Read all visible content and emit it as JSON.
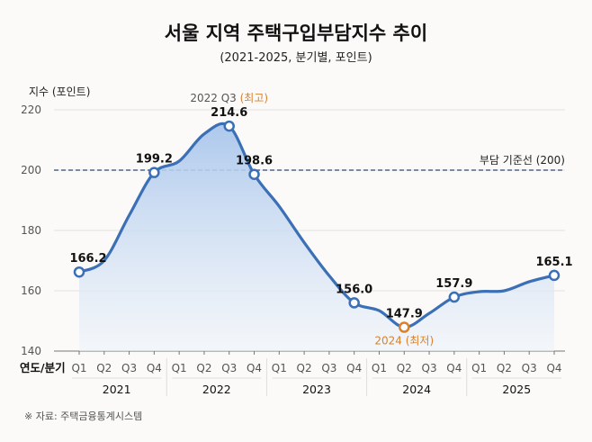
{
  "chart_data": {
    "type": "area",
    "title": "서울 지역 주택구입부담지수 추이",
    "subtitle": "(2021-2025, 분기별, 포인트)",
    "ylabel": "지수 (포인트)",
    "xlabel": "연도/분기",
    "ylim": [
      140,
      220
    ],
    "yticks": [
      140,
      160,
      180,
      200,
      220
    ],
    "grid": true,
    "years": [
      "2021",
      "2022",
      "2023",
      "2024",
      "2025"
    ],
    "quarters": [
      "Q1",
      "Q2",
      "Q3",
      "Q4"
    ],
    "values": [
      166.2,
      170,
      185,
      199.2,
      203,
      212,
      214.6,
      198.6,
      188,
      176,
      165,
      156.0,
      153.4,
      147.9,
      152.5,
      157.9,
      159.7,
      160,
      163,
      165.1
    ],
    "labeled_points": [
      {
        "index": 0,
        "label": "166.2"
      },
      {
        "index": 3,
        "label": "199.2"
      },
      {
        "index": 6,
        "label": "214.6"
      },
      {
        "index": 7,
        "label": "198.6"
      },
      {
        "index": 11,
        "label": "156.0"
      },
      {
        "index": 13,
        "label": "147.9"
      },
      {
        "index": 15,
        "label": "157.9"
      },
      {
        "index": 19,
        "label": "165.1"
      }
    ],
    "annotations": {
      "peak": {
        "index": 6,
        "text_a": "2022 Q3 ",
        "text_b": "(최고)"
      },
      "trough": {
        "index": 13,
        "text": "2024 (최저)"
      },
      "reference_line": {
        "value": 200,
        "label": "부담 기준선 (200)"
      }
    },
    "colors": {
      "line": "#3b6fb6",
      "fill_top": "#a9c6ec",
      "fill_bottom": "#eef3fa",
      "highlight": "#d9822b",
      "reference": "#2f4a6a"
    }
  },
  "footnote": "※ 자료: 주택금융통계시스템"
}
